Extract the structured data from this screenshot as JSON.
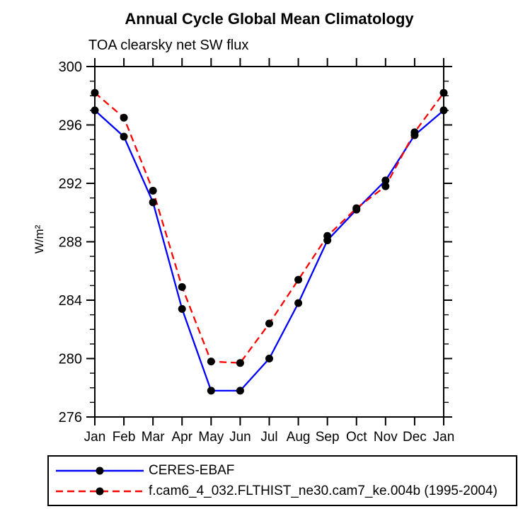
{
  "title": "Annual Cycle Global Mean Climatology",
  "subtitle": "TOA clearsky net SW flux",
  "y_axis_label": "W/m²",
  "chart_data": {
    "type": "line",
    "categories": [
      "Jan",
      "Feb",
      "Mar",
      "Apr",
      "May",
      "Jun",
      "Jul",
      "Aug",
      "Sep",
      "Oct",
      "Nov",
      "Dec",
      "Jan"
    ],
    "series": [
      {
        "name": "CERES-EBAF",
        "color": "#0000ff",
        "style": "solid",
        "marker": "circle",
        "marker_color": "#000000",
        "values": [
          297.0,
          295.2,
          290.7,
          283.4,
          277.8,
          277.8,
          280.0,
          283.8,
          288.1,
          290.2,
          292.2,
          295.3,
          297.0
        ]
      },
      {
        "name": "f.cam6_4_032.FLTHIST_ne30.cam7_ke.004b (1995-2004)",
        "color": "#ff0000",
        "style": "dashed",
        "marker": "circle",
        "marker_color": "#000000",
        "values": [
          298.2,
          296.5,
          291.5,
          284.9,
          279.8,
          279.7,
          282.4,
          285.4,
          288.4,
          290.3,
          291.8,
          295.5,
          298.2
        ]
      }
    ],
    "ylim": [
      276,
      300
    ],
    "y_major_ticks": [
      276,
      280,
      284,
      288,
      292,
      296,
      300
    ],
    "y_minor_step": 1,
    "axis_color": "#000000",
    "grid": false,
    "legend_position": "bottom"
  }
}
